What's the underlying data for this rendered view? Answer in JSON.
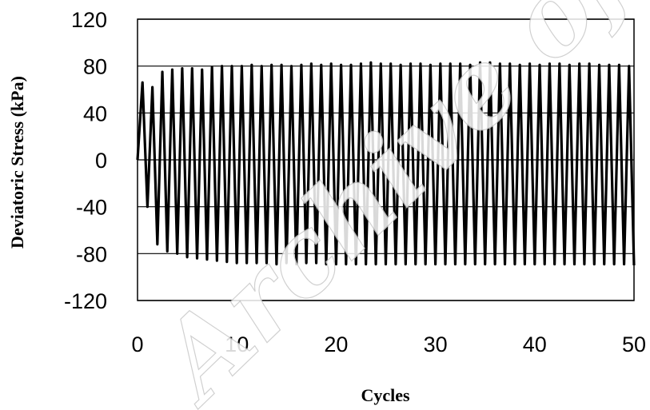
{
  "chart_data": {
    "type": "line",
    "title": "",
    "xlabel": "Cycles",
    "ylabel": "Deviatoric Stress (kPa)",
    "xlim": [
      0,
      50
    ],
    "ylim": [
      -120,
      120
    ],
    "x_ticks": [
      "0",
      "10",
      "20",
      "30",
      "40",
      "50"
    ],
    "y_ticks": [
      "120",
      "80",
      "40",
      "0",
      "-40",
      "-80",
      "-120"
    ],
    "grid": "horizontal",
    "legend": "none",
    "line_color": "#000000",
    "cycle_count": 50,
    "peaks": [
      66,
      62,
      75,
      77,
      78,
      78,
      77,
      79,
      80,
      80,
      80,
      81,
      80,
      81,
      81,
      80,
      81,
      82,
      81,
      82,
      81,
      81,
      82,
      83,
      82,
      82,
      81,
      82,
      82,
      81,
      82,
      82,
      82,
      81,
      83,
      83,
      82,
      82,
      81,
      82,
      81,
      82,
      82,
      81,
      82,
      82,
      81,
      81,
      81,
      80
    ],
    "troughs": [
      -40,
      -72,
      -78,
      -80,
      -83,
      -84,
      -85,
      -86,
      -87,
      -88,
      -88,
      -88,
      -88,
      -89,
      -88,
      -89,
      -88,
      -88,
      -89,
      -89,
      -89,
      -89,
      -89,
      -89,
      -89,
      -89,
      -89,
      -89,
      -89,
      -89,
      -89,
      -89,
      -89,
      -89,
      -89,
      -89,
      -89,
      -89,
      -89,
      -89,
      -89,
      -89,
      -89,
      -89,
      -89,
      -89,
      -89,
      -89,
      -89,
      -90
    ]
  },
  "watermark": {
    "text": "Archive of SID"
  }
}
